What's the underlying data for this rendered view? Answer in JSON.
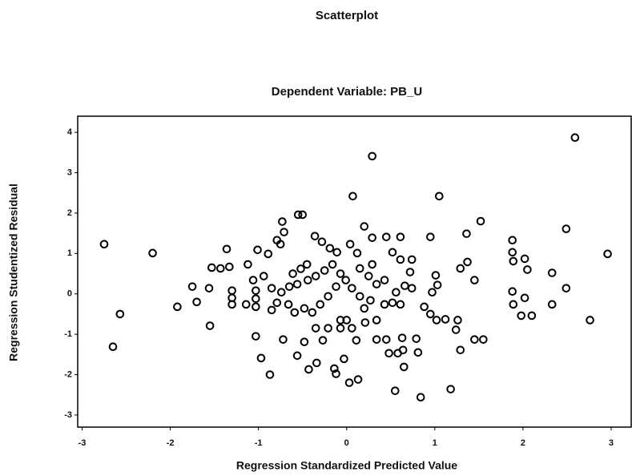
{
  "chart_data": {
    "type": "scatter",
    "title": "Scatterplot",
    "subtitle": "Dependent Variable: PB_U",
    "x_label": "Regression Standardized Predicted Value",
    "y_label": "Regression Studentized Residual",
    "color": "#000000",
    "xlim": [
      -3.05,
      3.2
    ],
    "xticks": [
      -3,
      -2,
      -1,
      0,
      1,
      2,
      3
    ],
    "ylim": [
      -3.3,
      4.4
    ],
    "yticks": [
      -3,
      -2,
      -1,
      0,
      1,
      2,
      3,
      4
    ],
    "grid": false,
    "x": [
      2.59,
      0.29,
      0.07,
      1.05,
      -0.55,
      -0.5,
      1.52,
      2.49,
      1.36,
      -2.75,
      -2.2,
      2.96,
      1.88,
      1.88,
      1.89,
      2.02,
      2.05,
      2.33,
      1.88,
      2.02,
      1.89,
      2.33,
      2.49,
      1.98,
      2.1,
      2.76,
      -2.57,
      -2.65,
      -1.92,
      -1.7,
      -1.75,
      -1.56,
      -1.53,
      -1.43,
      -1.36,
      -1.33,
      -1.55,
      -1.3,
      -1.3,
      -1.3,
      -1.14,
      -1.06,
      -1.03,
      -1.03,
      -1.03,
      -1.01,
      -0.89,
      -0.79,
      -0.73,
      -0.71,
      -1.03,
      -0.97,
      -0.87,
      -0.72,
      -0.85,
      -0.79,
      -0.61,
      -0.52,
      -0.45,
      -0.36,
      -0.28,
      -0.19,
      -0.11,
      0.04,
      0.12,
      0.29,
      0.45,
      0.61,
      0.52,
      0.61,
      0.74,
      0.72,
      0.66,
      0.95,
      1.01,
      1.03,
      0.97,
      0.88,
      0.95,
      1.02,
      1.12,
      1.26,
      1.29,
      1.37,
      1.45,
      1.24,
      1.29,
      1.45,
      1.55,
      1.18,
      0.84,
      0.55,
      0.65,
      0.64,
      0.48,
      0.58,
      0.81,
      0.63,
      0.79,
      0.45,
      0.34,
      0.13,
      0.03,
      -0.14,
      -0.12,
      -0.43,
      -0.34,
      -0.56,
      -0.48,
      -0.27,
      -0.03,
      0.11,
      0.21,
      0.34,
      0.43,
      0.52,
      0.61,
      0.27,
      0.15,
      0.06,
      -0.01,
      -0.12,
      -0.21,
      -0.3,
      -0.39,
      -0.48,
      -0.59,
      -0.66,
      -0.74,
      -0.65,
      -0.56,
      -0.44,
      -0.35,
      -0.25,
      -0.16,
      -0.07,
      0,
      -0.07,
      -0.07,
      -0.21,
      -0.35,
      0.06,
      0.2,
      0.34,
      0.25,
      0.15,
      0.29,
      0.43,
      0.56,
      0.74,
      0.2,
      -0.75,
      -1.12,
      -0.94,
      -0.85
    ],
    "values": [
      3.87,
      3.41,
      2.42,
      2.42,
      1.96,
      1.96,
      1.8,
      1.61,
      1.49,
      1.23,
      1.01,
      0.99,
      1.33,
      1.03,
      0.81,
      0.87,
      0.6,
      0.52,
      0.06,
      -0.1,
      -0.26,
      -0.26,
      0.14,
      -0.54,
      -0.54,
      -0.65,
      -0.5,
      -1.31,
      -0.32,
      -0.2,
      0.18,
      0.14,
      0.65,
      0.63,
      1.11,
      0.67,
      -0.79,
      0.08,
      -0.1,
      -0.26,
      -0.26,
      0.34,
      0.08,
      -0.12,
      -0.32,
      1.09,
      0.99,
      1.33,
      1.79,
      1.53,
      -1.05,
      -1.59,
      -2.0,
      -1.13,
      -0.4,
      -0.22,
      0.5,
      0.62,
      0.73,
      1.43,
      1.29,
      1.13,
      1.03,
      1.23,
      1.01,
      1.39,
      1.41,
      1.41,
      1.03,
      0.85,
      0.85,
      0.54,
      0.2,
      1.41,
      0.46,
      0.22,
      0.04,
      -0.32,
      -0.5,
      -0.65,
      -0.63,
      -0.65,
      0.63,
      0.79,
      0.34,
      -0.89,
      -1.39,
      -1.13,
      -1.13,
      -2.36,
      -2.56,
      -2.4,
      -1.81,
      -1.39,
      -1.47,
      -1.47,
      -1.45,
      -1.09,
      -1.11,
      -1.13,
      -1.13,
      -2.12,
      -2.2,
      -1.85,
      -1.98,
      -1.87,
      -1.71,
      -1.53,
      -1.19,
      -1.15,
      -1.61,
      -1.15,
      -0.71,
      -0.65,
      -0.26,
      -0.22,
      -0.26,
      -0.16,
      -0.06,
      0.14,
      0.34,
      0.18,
      -0.06,
      -0.26,
      -0.46,
      -0.36,
      -0.46,
      -0.26,
      0.04,
      0.18,
      0.24,
      0.34,
      0.44,
      0.58,
      0.73,
      0.5,
      -0.65,
      -0.65,
      -0.85,
      -0.85,
      -0.85,
      -0.85,
      -0.36,
      0.24,
      0.44,
      0.63,
      0.73,
      0.34,
      0.04,
      0.14,
      1.67,
      1.23,
      0.73,
      0.44,
      0.14
    ]
  }
}
